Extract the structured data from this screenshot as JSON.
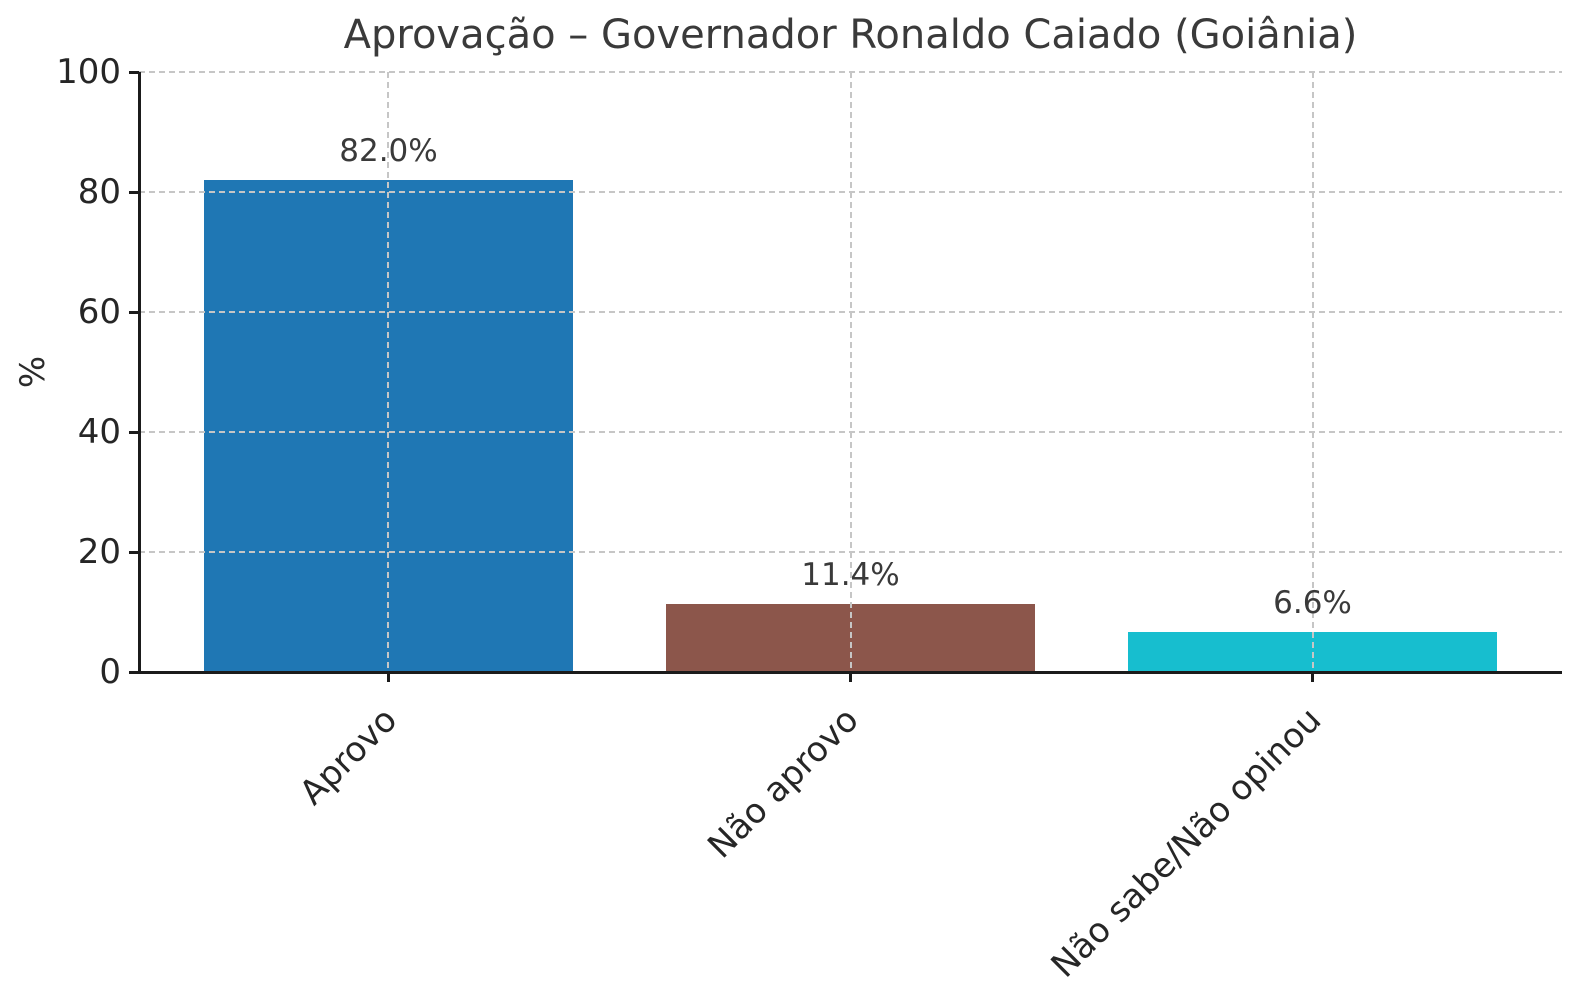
{
  "chart_data": {
    "type": "bar",
    "title": "Aprovação – Governador Ronaldo Caiado (Goiânia)",
    "xlabel": "",
    "ylabel": "%",
    "categories": [
      "Aprovo",
      "Não aprovo",
      "Não sabe/Não opinou"
    ],
    "values": [
      82.0,
      11.4,
      6.6
    ],
    "value_labels": [
      "82.0%",
      "11.4%",
      "6.6%"
    ],
    "bar_colors": [
      "#1f77b4",
      "#8c564b",
      "#17becf"
    ],
    "ylim": [
      0,
      100
    ],
    "yticks": [
      0,
      20,
      40,
      60,
      80,
      100
    ],
    "ytick_labels": [
      "0",
      "20",
      "40",
      "60",
      "80",
      "100"
    ],
    "xtick_rotation_deg": 45,
    "grid": {
      "visible": true,
      "style": "dashed",
      "axes": "both",
      "color": "#c6c6c6",
      "above_bars": true
    },
    "legend": "none",
    "bar_width_fraction": 0.8
  },
  "style_colors": {
    "axis_spine": "#1b1b1b",
    "text": "#2b2b2b",
    "background": "#ffffff"
  }
}
